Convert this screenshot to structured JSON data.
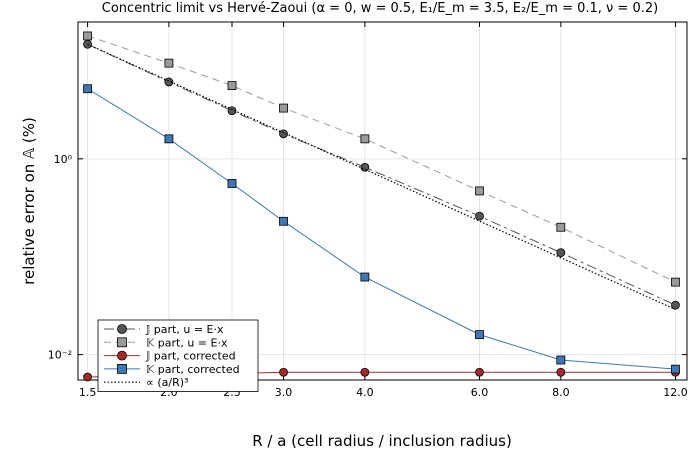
{
  "chart_data": {
    "type": "line",
    "title": "Concentric limit vs Hervé-Zaoui  (α = 0, w = 0.5, E₁/E_m = 3.5, E₂/E_m = 0.1, ν = 0.2)",
    "xlabel": "R / a  (cell radius / inclusion radius)",
    "ylabel": "relative error on 𝔸  (%)",
    "x_scale": "log",
    "y_scale": "log",
    "xlim": [
      1.45,
      12.5
    ],
    "ylim": [
      0.0055,
      25
    ],
    "x_ticks": [
      1.5,
      2.0,
      2.5,
      3.0,
      4.0,
      6.0,
      8.0,
      12.0
    ],
    "x_tick_labels": [
      "1.5",
      "2.0",
      "2.5",
      "3.0",
      "4.0",
      "6.0",
      "8.0",
      "12.0"
    ],
    "y_ticks": [
      1,
      0.01
    ],
    "y_tick_labels": [
      "10⁰",
      "10⁻²"
    ],
    "grid": true,
    "legend_position": "bottom-left",
    "series": [
      {
        "name": "𝕁 part, u = E·x",
        "color": "#555555",
        "line_style": "longdash",
        "marker": "circle",
        "x": [
          1.5,
          2.0,
          2.5,
          3.0,
          4.0,
          6.0,
          8.0,
          12.0
        ],
        "y": [
          14.8,
          6.1,
          3.1,
          1.8,
          0.82,
          0.26,
          0.11,
          0.032
        ]
      },
      {
        "name": "𝕂 part, u = E·x",
        "color": "#9a9a9a",
        "line_style": "dash",
        "marker": "square",
        "x": [
          1.5,
          2.0,
          2.5,
          3.0,
          4.0,
          6.0,
          8.0,
          12.0
        ],
        "y": [
          18.0,
          9.5,
          5.6,
          3.3,
          1.6,
          0.47,
          0.2,
          0.055
        ]
      },
      {
        "name": "𝕁 part, corrected",
        "color": "#a82828",
        "line_style": "solid",
        "marker": "circle",
        "x": [
          1.5,
          3.0,
          4.0,
          6.0,
          8.0,
          12.0
        ],
        "y": [
          0.0059,
          0.0066,
          0.0066,
          0.0066,
          0.0066,
          0.0066
        ]
      },
      {
        "name": "𝕂 part, corrected",
        "color": "#3e78b2",
        "line_style": "solid",
        "marker": "square",
        "x": [
          1.5,
          2.0,
          2.5,
          3.0,
          4.0,
          6.0,
          8.0,
          12.0
        ],
        "y": [
          5.2,
          1.6,
          0.56,
          0.23,
          0.062,
          0.016,
          0.0088,
          0.0071
        ]
      },
      {
        "name": "∝ (a/R)³",
        "color": "#000000",
        "line_style": "dot",
        "marker": "none",
        "x": [
          1.5,
          12.0
        ],
        "y": [
          14.8,
          0.0289
        ]
      }
    ]
  }
}
